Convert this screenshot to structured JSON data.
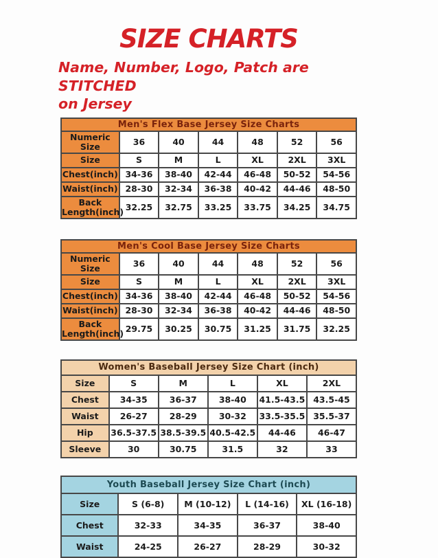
{
  "page": {
    "title": "SIZE CHARTS",
    "subtitle_line1": "Name, Number, Logo, Patch are STITCHED",
    "subtitle_line2": "on Jersey",
    "accent_red": "#d52127",
    "border_color": "#474747"
  },
  "tables": [
    {
      "id": "mens-flex-base",
      "title": "Men's Flex Base Jersey Size Charts",
      "theme": {
        "band_bg": "#ec8c3e",
        "band_text": "#7a230c",
        "label_bg": "#ec8c3e"
      },
      "rows": [
        {
          "label": "Numeric Size",
          "cells": [
            "36",
            "40",
            "44",
            "48",
            "52",
            "56"
          ]
        },
        {
          "label": "Size",
          "cells": [
            "S",
            "M",
            "L",
            "XL",
            "2XL",
            "3XL"
          ]
        },
        {
          "label": "Chest(inch)",
          "cells": [
            "34-36",
            "38-40",
            "42-44",
            "46-48",
            "50-52",
            "54-56"
          ]
        },
        {
          "label": "Waist(inch)",
          "cells": [
            "28-30",
            "32-34",
            "36-38",
            "40-42",
            "44-46",
            "48-50"
          ]
        },
        {
          "label": "Back Length(inch)",
          "cells": [
            "32.25",
            "32.75",
            "33.25",
            "33.75",
            "34.25",
            "34.75"
          ]
        }
      ]
    },
    {
      "id": "mens-cool-base",
      "title": "Men's Cool Base Jersey Size Charts",
      "theme": {
        "band_bg": "#ec8c3e",
        "band_text": "#7a230c",
        "label_bg": "#ec8c3e"
      },
      "rows": [
        {
          "label": "Numeric Size",
          "cells": [
            "36",
            "40",
            "44",
            "48",
            "52",
            "56"
          ]
        },
        {
          "label": "Size",
          "cells": [
            "S",
            "M",
            "L",
            "XL",
            "2XL",
            "3XL"
          ]
        },
        {
          "label": "Chest(inch)",
          "cells": [
            "34-36",
            "38-40",
            "42-44",
            "46-48",
            "50-52",
            "54-56"
          ]
        },
        {
          "label": "Waist(inch)",
          "cells": [
            "28-30",
            "32-34",
            "36-38",
            "40-42",
            "44-46",
            "48-50"
          ]
        },
        {
          "label": "Back Length(inch)",
          "cells": [
            "29.75",
            "30.25",
            "30.75",
            "31.25",
            "31.75",
            "32.25"
          ]
        }
      ]
    },
    {
      "id": "womens-baseball",
      "title": "Women's Baseball Jersey Size Chart (inch)",
      "theme": {
        "band_bg": "#f3d2ab",
        "band_text": "#4b2a10",
        "label_bg": "#f3d2ab"
      },
      "rows": [
        {
          "label": "Size",
          "cells": [
            "S",
            "M",
            "L",
            "XL",
            "2XL"
          ]
        },
        {
          "label": "Chest",
          "cells": [
            "34-35",
            "36-37",
            "38-40",
            "41.5-43.5",
            "43.5-45"
          ]
        },
        {
          "label": "Waist",
          "cells": [
            "26-27",
            "28-29",
            "30-32",
            "33.5-35.5",
            "35.5-37"
          ]
        },
        {
          "label": "Hip",
          "cells": [
            "36.5-37.5",
            "38.5-39.5",
            "40.5-42.5",
            "44-46",
            "46-47"
          ]
        },
        {
          "label": "Sleeve",
          "cells": [
            "30",
            "30.75",
            "31.5",
            "32",
            "33"
          ]
        }
      ]
    },
    {
      "id": "youth-baseball",
      "title": "Youth Baseball Jersey Size Chart (inch)",
      "theme": {
        "band_bg": "#a4d4e1",
        "band_text": "#1d4a52",
        "label_bg": "#a4d4e1"
      },
      "rows": [
        {
          "label": "Size",
          "cells": [
            "S (6-8)",
            "M (10-12)",
            "L (14-16)",
            "XL (16-18)"
          ]
        },
        {
          "label": "Chest",
          "cells": [
            "32-33",
            "34-35",
            "36-37",
            "38-40"
          ]
        },
        {
          "label": "Waist",
          "cells": [
            "24-25",
            "26-27",
            "28-29",
            "30-32"
          ]
        }
      ]
    }
  ]
}
